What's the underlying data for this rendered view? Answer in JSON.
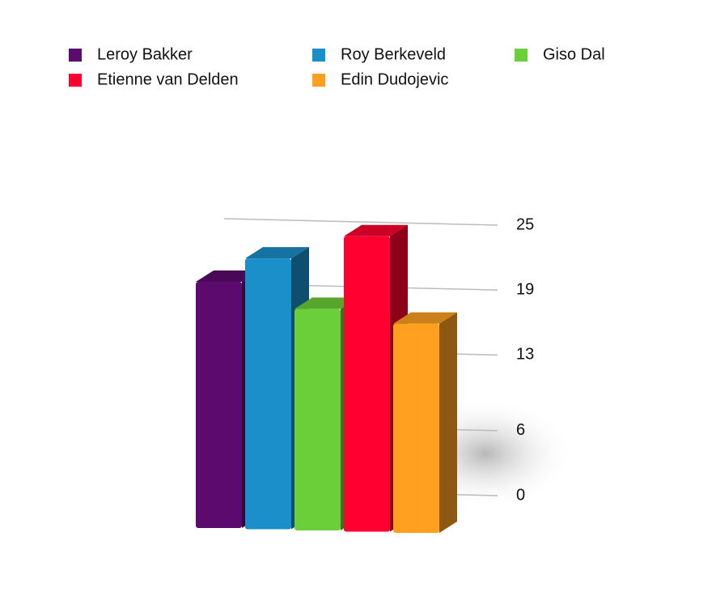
{
  "chart_data": {
    "type": "bar",
    "categories": [
      null
    ],
    "series": [
      {
        "name": "Leroy Bakker",
        "color": "#5c0a6e",
        "values": [
          20
        ]
      },
      {
        "name": "Roy Berkeveld",
        "color": "#1a8fc9",
        "values": [
          22
        ]
      },
      {
        "name": "Giso Dal",
        "color": "#6bcf3a",
        "values": [
          18
        ]
      },
      {
        "name": "Etienne van Delden",
        "color": "#ff0030",
        "values": [
          24
        ]
      },
      {
        "name": "Edin Dudojevic",
        "color": "#ffa020",
        "values": [
          17
        ]
      }
    ],
    "ylim": [
      0,
      25
    ],
    "yticks": [
      0,
      6,
      13,
      19,
      25
    ],
    "grid": true,
    "legend": "top"
  }
}
